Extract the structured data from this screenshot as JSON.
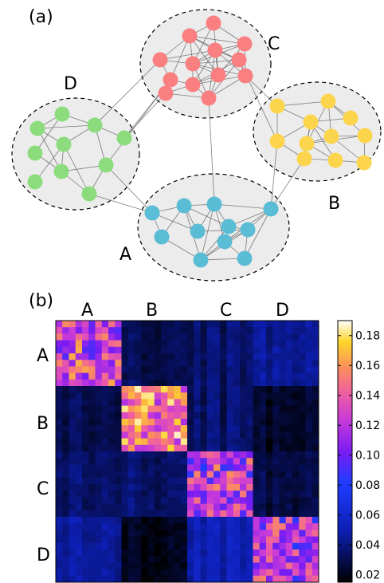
{
  "panel_a": {
    "label": "(a)",
    "communities": [
      {
        "name": "A",
        "color": "#5bbcd6"
      },
      {
        "name": "B",
        "color": "#fdd54c"
      },
      {
        "name": "C",
        "color": "#f97f81"
      },
      {
        "name": "D",
        "color": "#8cdc7e"
      }
    ]
  },
  "panel_b": {
    "label": "(b)",
    "block_labels": [
      "A",
      "B",
      "C",
      "D"
    ],
    "colorbar": {
      "ticks": [
        "0.18",
        "0.16",
        "0.14",
        "0.12",
        "0.10",
        "0.08",
        "0.06",
        "0.04",
        "0.02"
      ],
      "min": 0.015,
      "max": 0.19,
      "colormap": "plasma-like (black-blue-purple-pink-orange-yellow-white)"
    },
    "block_means": [
      [
        0.13,
        0.03,
        0.035,
        0.045
      ],
      [
        0.03,
        0.15,
        0.035,
        0.025
      ],
      [
        0.035,
        0.035,
        0.12,
        0.03
      ],
      [
        0.045,
        0.02,
        0.05,
        0.12
      ]
    ]
  },
  "colors": {
    "community_fill": "#ececec",
    "edge": "#555555"
  }
}
